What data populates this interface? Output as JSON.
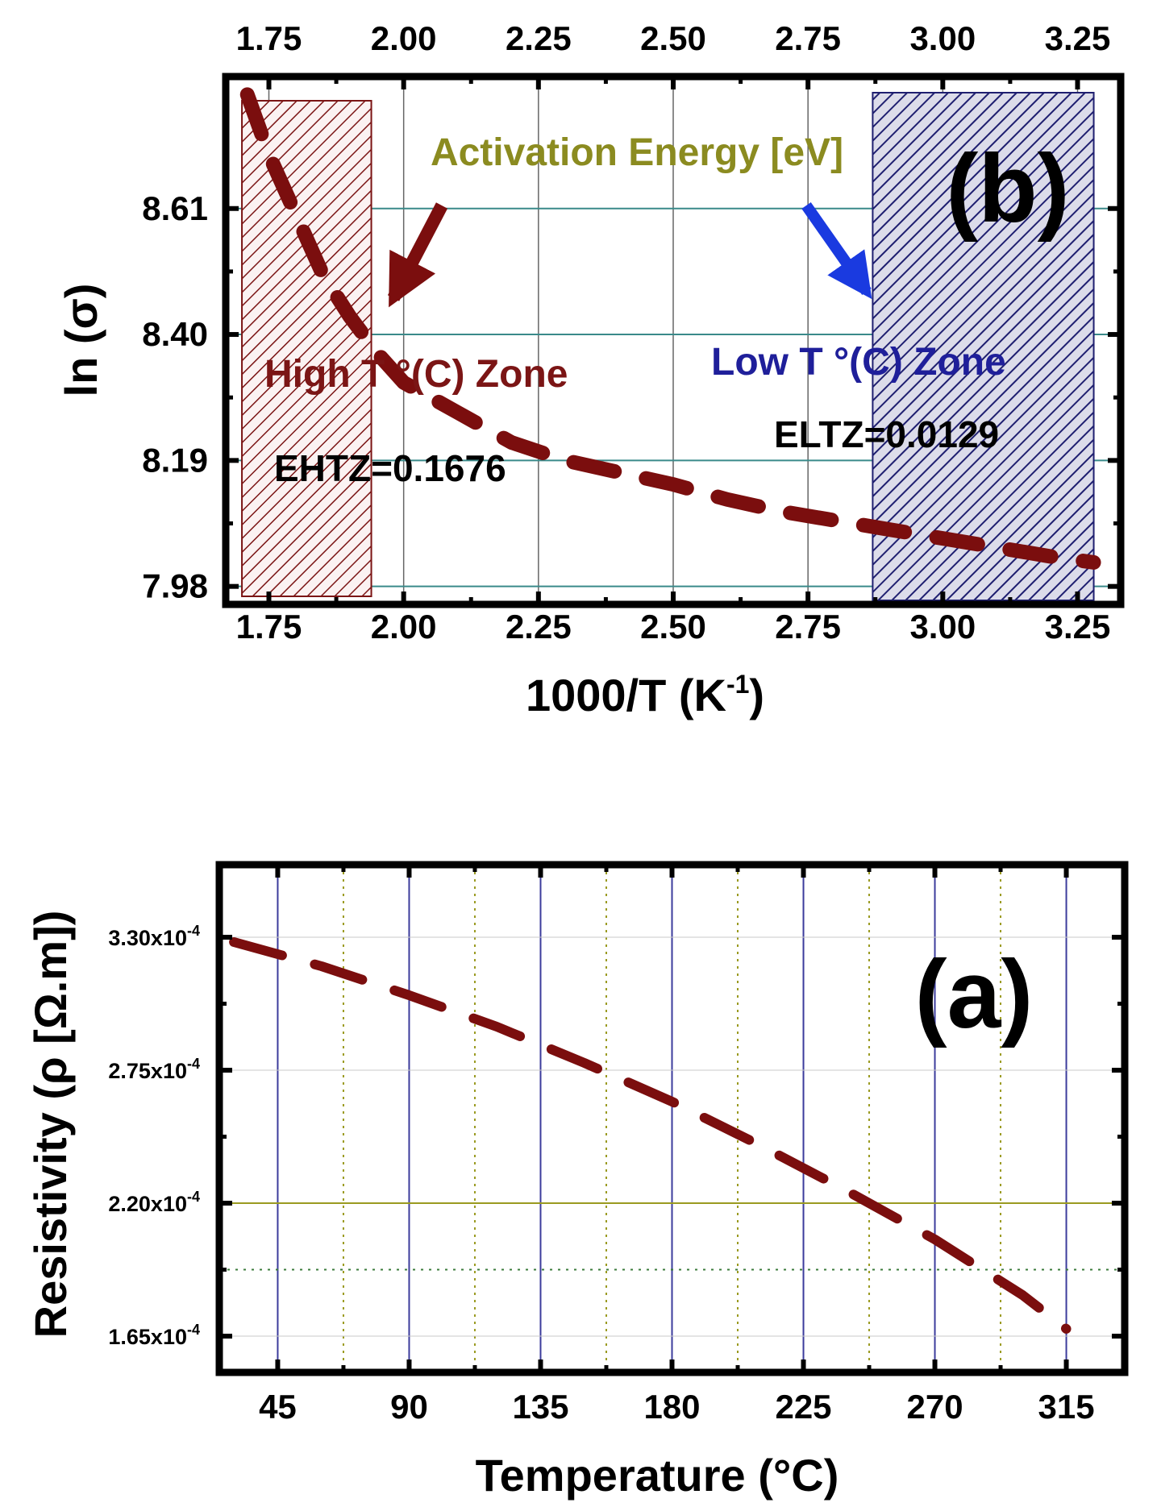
{
  "colors": {
    "series": "#7b0e0e",
    "high_zone": "#7b1515",
    "low_zone": "#1f1f70",
    "title_olive": "#8b8b20",
    "grid_blue": "#3c3c9c",
    "grid_teal": "#3a8a8a",
    "grid_olive": "#9a9a20",
    "low_arrow": "#1a3ae0"
  },
  "chart_data": [
    {
      "id": "panel-b",
      "type": "line",
      "panel_label": "(b)",
      "title": "Activation Energy [eV]",
      "xlabel": "1000/T (K",
      "xlabel_sup": "-1",
      "xlabel_tail": ")",
      "ylabel": "ln (σ)",
      "xlim": [
        1.67,
        3.33
      ],
      "ylim": [
        7.95,
        8.83
      ],
      "xticks": [
        1.75,
        2.0,
        2.25,
        2.5,
        2.75,
        3.0,
        3.25
      ],
      "xtick_labels": [
        "1.75",
        "2.00",
        "2.25",
        "2.50",
        "2.75",
        "3.00",
        "3.25"
      ],
      "yticks": [
        7.98,
        8.19,
        8.4,
        8.61
      ],
      "ytick_labels": [
        "7.98",
        "8.19",
        "8.40",
        "8.61"
      ],
      "series": [
        {
          "name": "ln(σ)",
          "style": "dashed",
          "x": [
            1.71,
            1.75,
            1.8,
            1.85,
            1.9,
            1.95,
            2.0,
            2.1,
            2.2,
            2.3,
            2.4,
            2.5,
            2.6,
            2.7,
            2.8,
            2.9,
            3.0,
            3.1,
            3.2,
            3.28
          ],
          "y": [
            8.8,
            8.7,
            8.6,
            8.5,
            8.43,
            8.37,
            8.32,
            8.27,
            8.22,
            8.19,
            8.17,
            8.15,
            8.125,
            8.105,
            8.09,
            8.075,
            8.06,
            8.045,
            8.03,
            8.02
          ]
        }
      ],
      "zones": [
        {
          "name": "High T °(C) Zone",
          "x_range": [
            1.7,
            1.94
          ],
          "energy_label": "EHTZ=0.1676"
        },
        {
          "name": "Low T °(C) Zone",
          "x_range": [
            2.87,
            3.28
          ],
          "energy_label": "ELTZ=0.0129"
        }
      ]
    },
    {
      "id": "panel-a",
      "type": "line",
      "panel_label": "(a)",
      "title": "",
      "xlabel": "Temperature (°C)",
      "ylabel": "Resistivity (ρ [Ω.m])",
      "xlim": [
        25,
        335
      ],
      "ylim": [
        0.00015,
        0.00036
      ],
      "xticks": [
        45,
        90,
        135,
        180,
        225,
        270,
        315
      ],
      "xtick_labels": [
        "45",
        "90",
        "135",
        "180",
        "225",
        "270",
        "315"
      ],
      "yticks": [
        0.000165,
        0.00022,
        0.000275,
        0.00033
      ],
      "ytick_labels": [
        "1.65x10",
        "2.20x10",
        "2.75x10",
        "3.30x10"
      ],
      "ytick_exponent": "-4",
      "series": [
        {
          "name": "Resistivity",
          "style": "dashed",
          "x": [
            30,
            60,
            90,
            120,
            150,
            180,
            210,
            240,
            270,
            300,
            315
          ],
          "y": [
            0.000328,
            0.000318,
            0.000306,
            0.000293,
            0.000278,
            0.000262,
            0.000244,
            0.000225,
            0.000205,
            0.000182,
            0.000168
          ]
        }
      ]
    }
  ]
}
